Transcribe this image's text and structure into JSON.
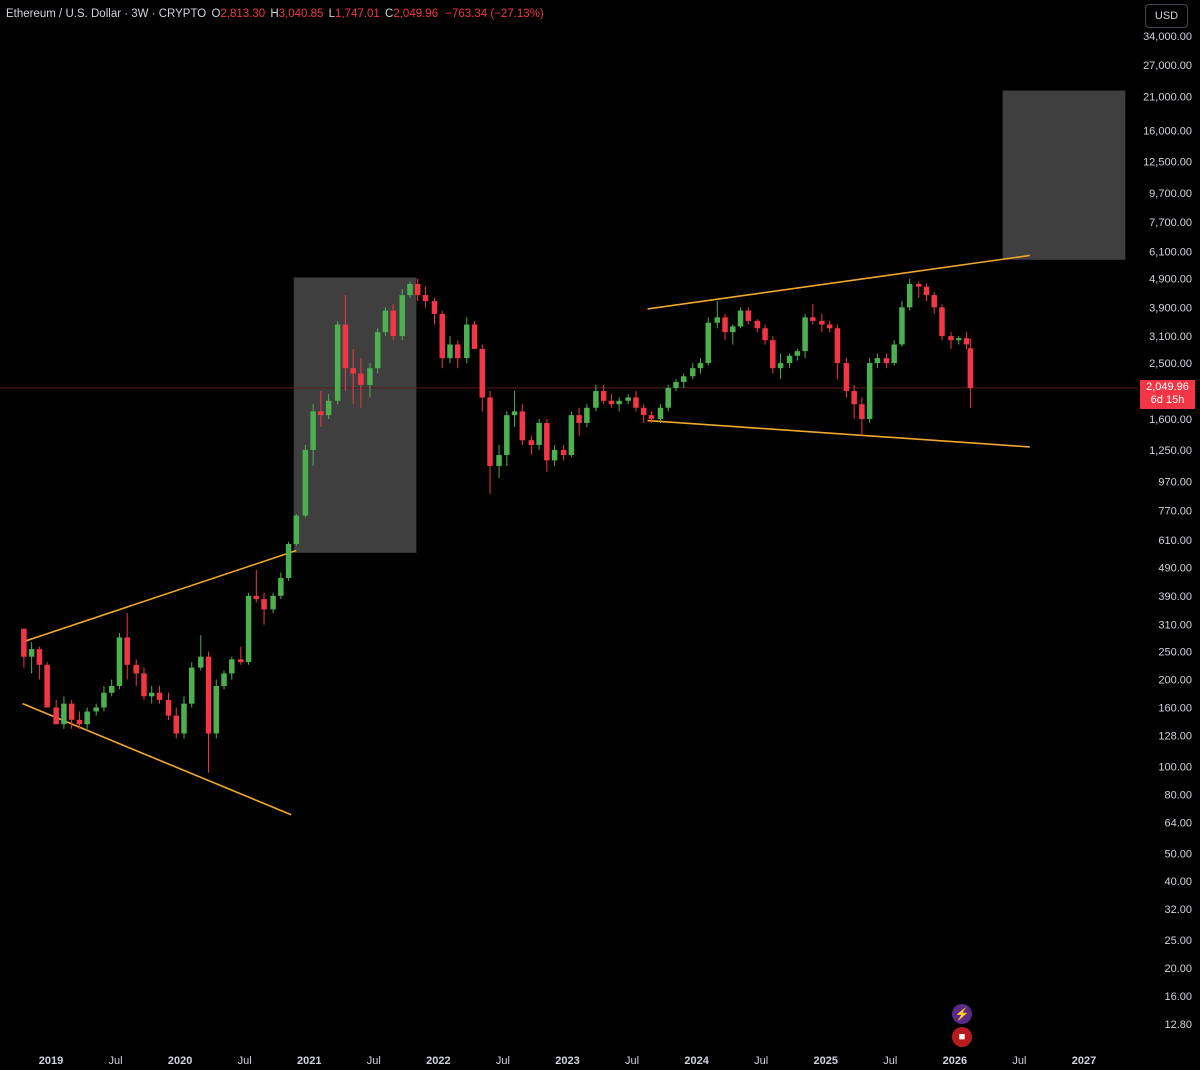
{
  "header": {
    "title": "Ethereum / U.S. Dollar · 3W · CRYPTO",
    "open_key": "O",
    "open_val": "2,813.30",
    "high_key": "H",
    "high_val": "3,040.85",
    "low_key": "L",
    "low_val": "1,747.01",
    "close_key": "C",
    "close_val": "2,049.96",
    "change": "−763.34 (−27.13%)"
  },
  "currency_button": "USD",
  "price_label": {
    "price": "2,049.96",
    "countdown": "6d 15h"
  },
  "icons": {
    "bolt": "lightning-icon",
    "flag": "us-flag-icon"
  },
  "colors": {
    "up": "#4caf50",
    "down": "#f23645",
    "trendline": "#f0a830",
    "box": "#4a4a4a",
    "axis_text": "#d1d4dc"
  },
  "chart_data": {
    "type": "candlestick",
    "scale": "log",
    "y_ticks": [
      34000,
      27000,
      21000,
      16000,
      12500,
      9700,
      7700,
      6100,
      4900,
      3900,
      3100,
      2500,
      2049.96,
      1600,
      1250,
      970,
      770,
      610,
      490,
      390,
      310,
      250,
      200,
      160,
      128,
      100,
      80,
      64,
      50,
      40,
      32,
      25,
      20,
      16,
      12.8
    ],
    "y_tick_labels": [
      "34,000.00",
      "27,000.00",
      "21,000.00",
      "16,000.00",
      "12,500.00",
      "9,700.00",
      "7,700.00",
      "6,100.00",
      "4,900.00",
      "3,900.00",
      "3,100.00",
      "2,500.00",
      "",
      "1,600.00",
      "1,250.00",
      "970.00",
      "770.00",
      "610.00",
      "490.00",
      "390.00",
      "310.00",
      "250.00",
      "200.00",
      "160.00",
      "128.00",
      "100.00",
      "80.00",
      "64.00",
      "50.00",
      "40.00",
      "32.00",
      "25.00",
      "20.00",
      "16.00",
      "12.80"
    ],
    "x_tick_labels": [
      "2019",
      "Jul",
      "2020",
      "Jul",
      "2021",
      "Jul",
      "2022",
      "Jul",
      "2023",
      "Jul",
      "2024",
      "Jul",
      "2025",
      "Jul",
      "2026",
      "Jul",
      "2027"
    ],
    "x_tick_dates": [
      2019.0,
      2019.5,
      2020.0,
      2020.5,
      2021.0,
      2021.5,
      2022.0,
      2022.5,
      2023.0,
      2023.5,
      2024.0,
      2024.5,
      2025.0,
      2025.5,
      2026.0,
      2026.5,
      2027.0
    ],
    "current_price": 2049.96,
    "candles": [
      [
        2018.79,
        300,
        300,
        220,
        240
      ],
      [
        2018.85,
        240,
        270,
        210,
        255
      ],
      [
        2018.91,
        255,
        260,
        200,
        225
      ],
      [
        2018.97,
        225,
        230,
        180,
        160
      ],
      [
        2019.04,
        160,
        170,
        140,
        140
      ],
      [
        2019.1,
        140,
        175,
        135,
        165
      ],
      [
        2019.16,
        165,
        170,
        135,
        145
      ],
      [
        2019.22,
        145,
        155,
        135,
        140
      ],
      [
        2019.28,
        140,
        160,
        135,
        155
      ],
      [
        2019.35,
        155,
        165,
        150,
        160
      ],
      [
        2019.41,
        160,
        190,
        155,
        180
      ],
      [
        2019.47,
        180,
        200,
        175,
        190
      ],
      [
        2019.53,
        190,
        290,
        185,
        280
      ],
      [
        2019.59,
        280,
        340,
        200,
        225
      ],
      [
        2019.66,
        225,
        235,
        190,
        210
      ],
      [
        2019.72,
        210,
        220,
        170,
        175
      ],
      [
        2019.78,
        175,
        190,
        165,
        180
      ],
      [
        2019.84,
        180,
        190,
        165,
        170
      ],
      [
        2019.91,
        170,
        180,
        145,
        150
      ],
      [
        2019.97,
        150,
        160,
        125,
        130
      ],
      [
        2020.03,
        130,
        175,
        125,
        165
      ],
      [
        2020.09,
        165,
        230,
        160,
        220
      ],
      [
        2020.16,
        220,
        285,
        215,
        240
      ],
      [
        2020.22,
        240,
        250,
        95,
        130
      ],
      [
        2020.28,
        130,
        200,
        125,
        190
      ],
      [
        2020.34,
        190,
        215,
        185,
        210
      ],
      [
        2020.4,
        210,
        240,
        200,
        235
      ],
      [
        2020.47,
        235,
        260,
        225,
        230
      ],
      [
        2020.53,
        230,
        400,
        225,
        390
      ],
      [
        2020.59,
        390,
        480,
        370,
        380
      ],
      [
        2020.65,
        380,
        400,
        310,
        350
      ],
      [
        2020.72,
        350,
        400,
        340,
        390
      ],
      [
        2020.78,
        390,
        470,
        380,
        450
      ],
      [
        2020.84,
        450,
        600,
        440,
        590
      ],
      [
        2020.9,
        590,
        750,
        580,
        740
      ],
      [
        2020.97,
        740,
        1300,
        730,
        1250
      ],
      [
        2021.03,
        1250,
        1800,
        1100,
        1700
      ],
      [
        2021.09,
        1700,
        2000,
        1500,
        1650
      ],
      [
        2021.15,
        1650,
        1950,
        1600,
        1850
      ],
      [
        2021.22,
        1850,
        3500,
        1800,
        3400
      ],
      [
        2021.28,
        3400,
        4300,
        2000,
        2400
      ],
      [
        2021.34,
        2400,
        2800,
        1800,
        2300
      ],
      [
        2021.4,
        2300,
        2600,
        1750,
        2100
      ],
      [
        2021.47,
        2100,
        2500,
        1900,
        2400
      ],
      [
        2021.53,
        2400,
        3300,
        2300,
        3200
      ],
      [
        2021.59,
        3200,
        3900,
        3100,
        3800
      ],
      [
        2021.65,
        3800,
        4000,
        3000,
        3100
      ],
      [
        2021.72,
        3100,
        4500,
        3000,
        4300
      ],
      [
        2021.78,
        4300,
        4800,
        4200,
        4700
      ],
      [
        2021.84,
        4700,
        4900,
        4100,
        4300
      ],
      [
        2021.9,
        4300,
        4600,
        3900,
        4100
      ],
      [
        2021.97,
        4100,
        4200,
        3400,
        3700
      ],
      [
        2022.03,
        3700,
        3800,
        2400,
        2600
      ],
      [
        2022.09,
        2600,
        3100,
        2500,
        2900
      ],
      [
        2022.15,
        2900,
        3000,
        2400,
        2600
      ],
      [
        2022.22,
        2600,
        3600,
        2500,
        3400
      ],
      [
        2022.28,
        3400,
        3500,
        2800,
        2800
      ],
      [
        2022.34,
        2800,
        2900,
        1700,
        1900
      ],
      [
        2022.4,
        1900,
        2000,
        880,
        1100
      ],
      [
        2022.47,
        1100,
        1300,
        1000,
        1200
      ],
      [
        2022.53,
        1200,
        1700,
        1100,
        1650
      ],
      [
        2022.59,
        1650,
        2000,
        1500,
        1700
      ],
      [
        2022.65,
        1700,
        1800,
        1300,
        1350
      ],
      [
        2022.72,
        1350,
        1400,
        1200,
        1300
      ],
      [
        2022.78,
        1300,
        1600,
        1250,
        1550
      ],
      [
        2022.84,
        1550,
        1600,
        1050,
        1150
      ],
      [
        2022.9,
        1150,
        1300,
        1100,
        1250
      ],
      [
        2022.97,
        1250,
        1300,
        1150,
        1200
      ],
      [
        2023.03,
        1200,
        1700,
        1180,
        1650
      ],
      [
        2023.09,
        1650,
        1750,
        1400,
        1550
      ],
      [
        2023.15,
        1550,
        1800,
        1500,
        1750
      ],
      [
        2023.22,
        1750,
        2100,
        1700,
        2000
      ],
      [
        2023.28,
        2000,
        2100,
        1800,
        1850
      ],
      [
        2023.34,
        1850,
        1950,
        1750,
        1800
      ],
      [
        2023.4,
        1800,
        1900,
        1700,
        1850
      ],
      [
        2023.47,
        1850,
        1950,
        1800,
        1900
      ],
      [
        2023.53,
        1900,
        2000,
        1700,
        1750
      ],
      [
        2023.59,
        1750,
        1800,
        1550,
        1650
      ],
      [
        2023.65,
        1650,
        1700,
        1550,
        1600
      ],
      [
        2023.72,
        1600,
        1800,
        1550,
        1750
      ],
      [
        2023.78,
        1750,
        2100,
        1700,
        2050
      ],
      [
        2023.84,
        2050,
        2200,
        2000,
        2150
      ],
      [
        2023.9,
        2150,
        2300,
        2050,
        2250
      ],
      [
        2023.97,
        2250,
        2500,
        2200,
        2400
      ],
      [
        2024.03,
        2400,
        2600,
        2300,
        2500
      ],
      [
        2024.09,
        2500,
        3600,
        2450,
        3450
      ],
      [
        2024.16,
        3450,
        4100,
        3300,
        3600
      ],
      [
        2024.22,
        3600,
        3700,
        3000,
        3200
      ],
      [
        2024.28,
        3200,
        3400,
        2900,
        3350
      ],
      [
        2024.34,
        3350,
        3900,
        3300,
        3800
      ],
      [
        2024.4,
        3800,
        3900,
        3400,
        3500
      ],
      [
        2024.47,
        3500,
        3550,
        3200,
        3300
      ],
      [
        2024.53,
        3300,
        3400,
        2900,
        3000
      ],
      [
        2024.59,
        3000,
        3100,
        2300,
        2400
      ],
      [
        2024.65,
        2400,
        2700,
        2200,
        2500
      ],
      [
        2024.72,
        2500,
        2700,
        2400,
        2650
      ],
      [
        2024.78,
        2650,
        2800,
        2550,
        2750
      ],
      [
        2024.84,
        2750,
        3700,
        2600,
        3600
      ],
      [
        2024.9,
        3600,
        4000,
        3400,
        3500
      ],
      [
        2024.97,
        3500,
        3700,
        3200,
        3400
      ],
      [
        2025.03,
        3400,
        3500,
        3200,
        3300
      ],
      [
        2025.09,
        3300,
        3400,
        2200,
        2500
      ],
      [
        2025.16,
        2500,
        2600,
        1900,
        2000
      ],
      [
        2025.22,
        2000,
        2100,
        1600,
        1800
      ],
      [
        2025.28,
        1800,
        1900,
        1400,
        1600
      ],
      [
        2025.34,
        1600,
        2600,
        1550,
        2500
      ],
      [
        2025.4,
        2500,
        2700,
        2400,
        2600
      ],
      [
        2025.47,
        2600,
        2700,
        2400,
        2500
      ],
      [
        2025.53,
        2500,
        3000,
        2450,
        2900
      ],
      [
        2025.59,
        2900,
        4100,
        2850,
        3900
      ],
      [
        2025.65,
        3900,
        4900,
        3800,
        4700
      ],
      [
        2025.72,
        4700,
        4800,
        4200,
        4600
      ],
      [
        2025.78,
        4600,
        4700,
        4100,
        4300
      ],
      [
        2025.84,
        4300,
        4400,
        3700,
        3900
      ],
      [
        2025.9,
        3900,
        4000,
        3000,
        3100
      ],
      [
        2025.97,
        3100,
        3200,
        2800,
        3000
      ],
      [
        2026.03,
        3000,
        3100,
        2900,
        3050
      ],
      [
        2026.09,
        3050,
        3200,
        2800,
        2900
      ],
      [
        2026.12,
        2813.3,
        3040.85,
        1747.01,
        2049.96
      ]
    ],
    "trendlines": [
      [
        [
          2018.78,
          270
        ],
        [
          2020.9,
          560
        ]
      ],
      [
        [
          2018.78,
          165
        ],
        [
          2020.86,
          68
        ]
      ],
      [
        [
          2023.62,
          3850
        ],
        [
          2026.58,
          5900
        ]
      ],
      [
        [
          2023.62,
          1580
        ],
        [
          2026.58,
          1280
        ]
      ]
    ],
    "boxes": [
      {
        "x0": 2020.88,
        "x1": 2021.83,
        "top": 4950,
        "bottom": 550
      },
      {
        "x0": 2026.37,
        "x1": 2027.32,
        "top": 22000,
        "bottom": 5700
      }
    ]
  }
}
